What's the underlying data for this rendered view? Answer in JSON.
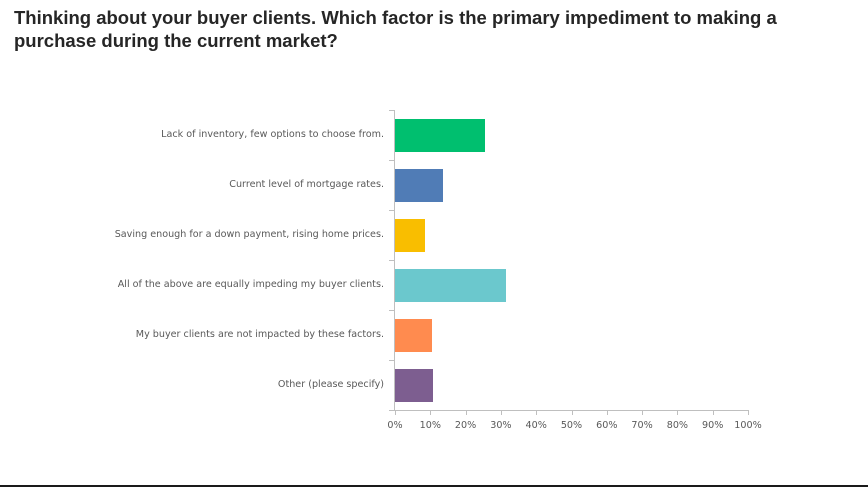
{
  "title": "Thinking about your buyer clients. Which factor is the primary impediment to making a purchase during the current market?",
  "chart_data": {
    "type": "bar",
    "orientation": "horizontal",
    "title": "Thinking about your buyer clients. Which factor is the primary impediment to making a purchase during the current market?",
    "xlabel": "",
    "ylabel": "",
    "xlim": [
      0,
      100
    ],
    "grid": false,
    "legend": null,
    "categories": [
      "Lack of inventory, few options to choose from.",
      "Current level of mortgage rates.",
      "Saving enough for a down payment, rising home prices.",
      "All of the above are equally impeding my buyer clients.",
      "My buyer clients are not impacted by these factors.",
      "Other (please specify)"
    ],
    "values": [
      25.5,
      13.5,
      8.5,
      31.5,
      10.5,
      10.8
    ],
    "colors": [
      "#00bf6f",
      "#507cb6",
      "#f9be00",
      "#6bc8cd",
      "#ff8b4f",
      "#7d5e90"
    ],
    "x_ticks": [
      "0%",
      "10%",
      "20%",
      "30%",
      "40%",
      "50%",
      "60%",
      "70%",
      "80%",
      "90%",
      "100%"
    ]
  }
}
